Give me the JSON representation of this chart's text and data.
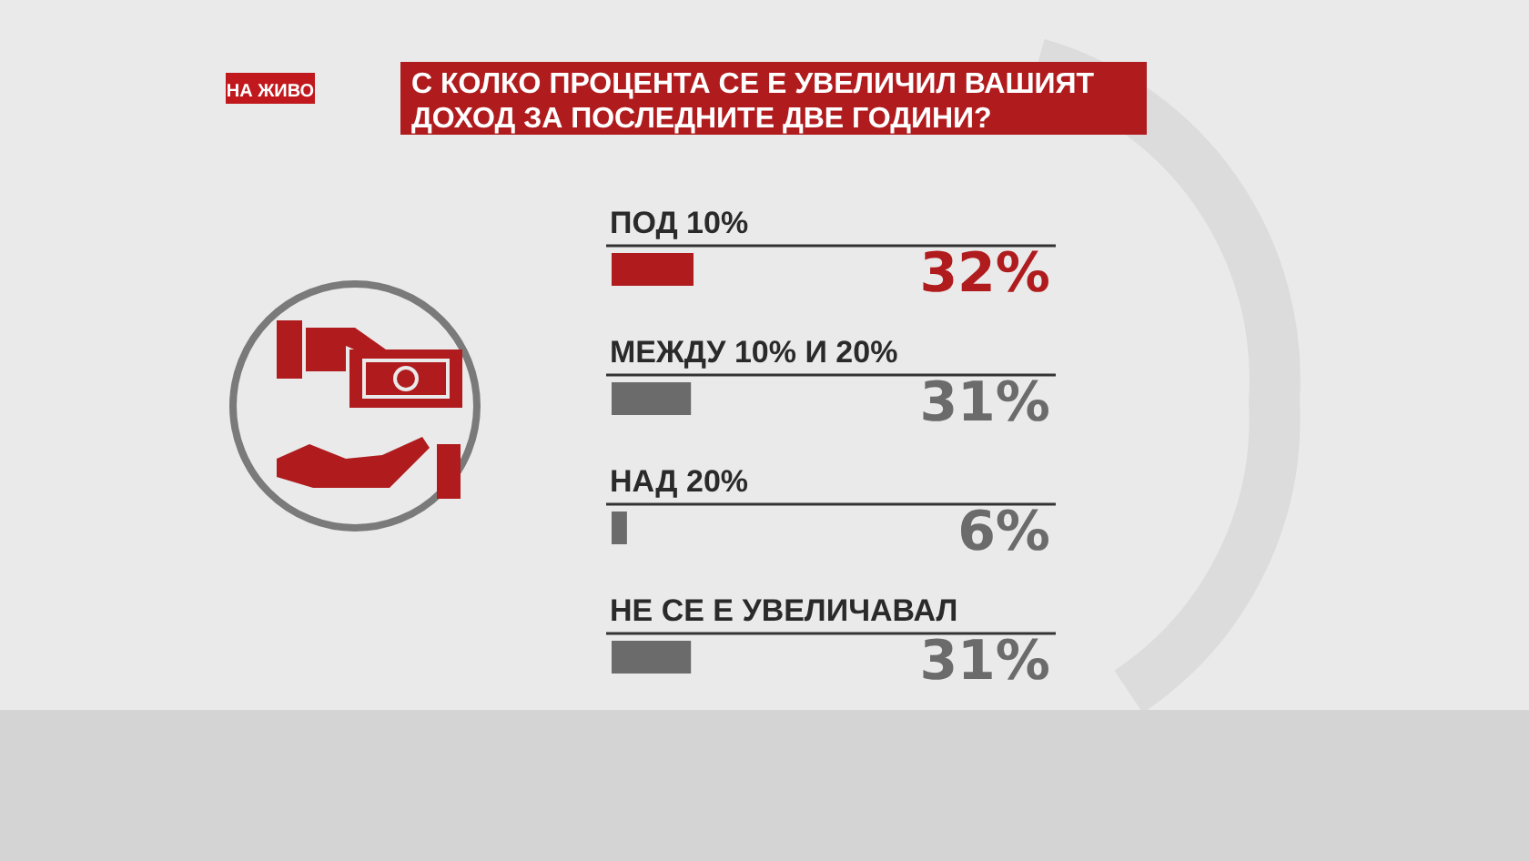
{
  "chart_data": {
    "type": "bar",
    "orientation": "horizontal",
    "title": "С КОЛКО ПРОЦЕНТА СЕ Е УВЕЛИЧИЛ ВАШИЯТ\nДОХОД ЗА ПОСЛЕДНИТЕ ДВЕ ГОДИНИ?",
    "categories": [
      "ПОД 10%",
      "МЕЖДУ 10% И 20%",
      "НАД 20%",
      "НЕ СЕ Е УВЕЛИЧАВАЛ"
    ],
    "values": [
      32,
      31,
      6,
      31
    ],
    "colors": [
      "#b01c1e",
      "#6b6b6b",
      "#6b6b6b",
      "#6b6b6b"
    ],
    "value_labels": [
      "32%",
      "31%",
      "6%",
      "31%"
    ],
    "annotations": [
      "НА ЖИВО"
    ]
  }
}
